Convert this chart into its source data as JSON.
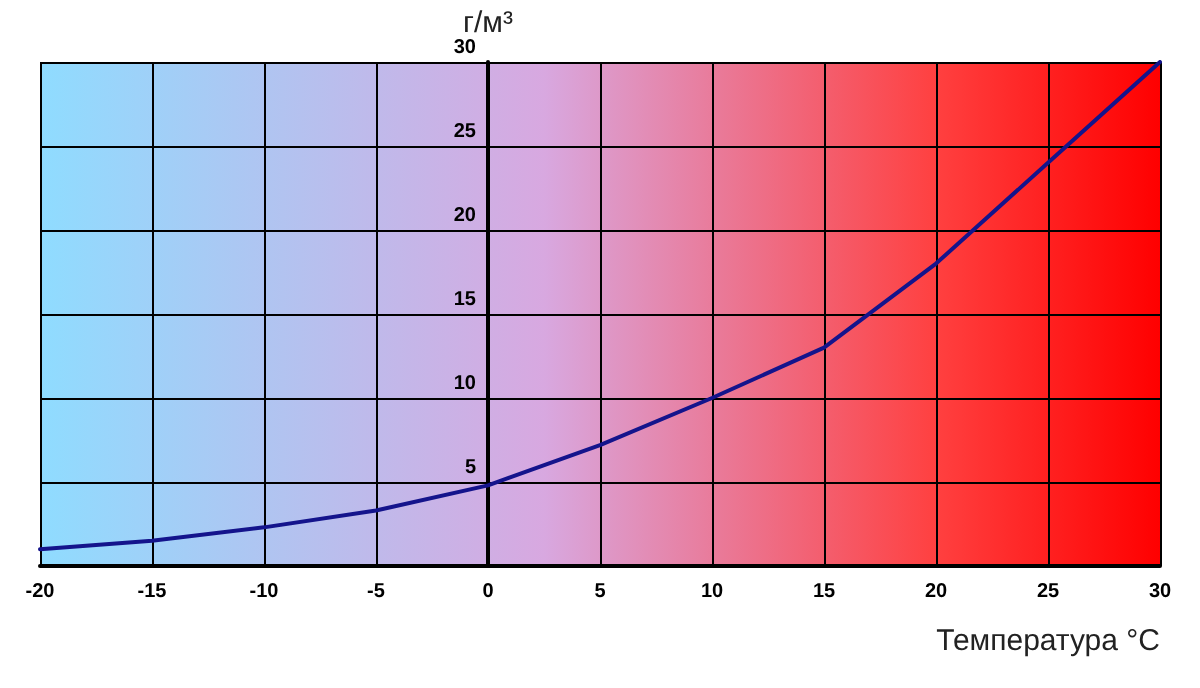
{
  "chart_data": {
    "type": "line",
    "ylabel": "г/м³",
    "xlabel": "Температура °C",
    "x": [
      -20,
      -15,
      -10,
      -5,
      0,
      5,
      10,
      15,
      20,
      25,
      30
    ],
    "series": [
      {
        "color": "#14148c",
        "values": [
          1,
          1.5,
          2.3,
          3.3,
          4.8,
          7.2,
          10,
          13,
          18,
          24,
          30
        ]
      }
    ],
    "xlim": [
      -20,
      30
    ],
    "xticks": [
      -20,
      -15,
      -10,
      -5,
      0,
      5,
      10,
      15,
      20,
      25,
      30
    ],
    "ylim": [
      0,
      30
    ],
    "yticks": [
      {
        "value": 0,
        "label": null
      },
      5,
      10,
      15,
      20,
      25,
      30
    ],
    "grid": true,
    "marker": "none",
    "line_style": "solid"
  }
}
